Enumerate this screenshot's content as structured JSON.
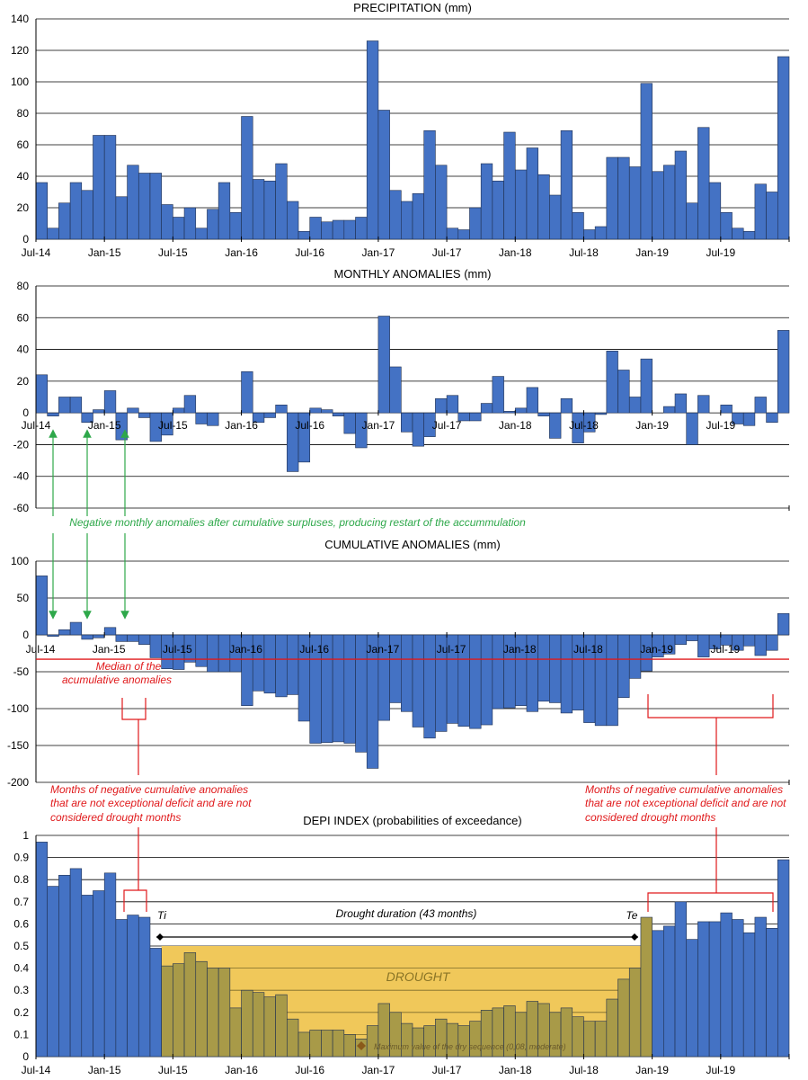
{
  "months": [
    "Jul-14",
    "Aug-14",
    "Sep-14",
    "Oct-14",
    "Nov-14",
    "Dec-14",
    "Jan-15",
    "Feb-15",
    "Mar-15",
    "Apr-15",
    "May-15",
    "Jun-15",
    "Jul-15",
    "Aug-15",
    "Sep-15",
    "Oct-15",
    "Nov-15",
    "Dec-15",
    "Jan-16",
    "Feb-16",
    "Mar-16",
    "Apr-16",
    "May-16",
    "Jun-16",
    "Jul-16",
    "Aug-16",
    "Sep-16",
    "Oct-16",
    "Nov-16",
    "Dec-16",
    "Jan-17",
    "Feb-17",
    "Mar-17",
    "Apr-17",
    "May-17",
    "Jun-17",
    "Jul-17",
    "Aug-17",
    "Sep-17",
    "Oct-17",
    "Nov-17",
    "Dec-17",
    "Jan-18",
    "Feb-18",
    "Mar-18",
    "Apr-18",
    "May-18",
    "Jun-18",
    "Jul-18",
    "Aug-18",
    "Sep-18",
    "Oct-18",
    "Nov-18",
    "Dec-18",
    "Jan-19",
    "Feb-19",
    "Mar-19",
    "Apr-19",
    "May-19",
    "Jun-19",
    "Jul-19",
    "Aug-19",
    "Sep-19",
    "Oct-19",
    "Nov-19",
    "Dec-19"
  ],
  "x_tick_labels": [
    "Jul-14",
    "Jan-15",
    "Jul-15",
    "Jan-16",
    "Jul-16",
    "Jan-17",
    "Jul-17",
    "Jan-18",
    "Jul-18",
    "Jan-19",
    "Jul-19"
  ],
  "colors": {
    "bar": "#4472c4",
    "bar_outline": "#1f2f4f",
    "drought_bar": "#a89a48",
    "drought_band": "#f0c85a",
    "median_line": "#e0191b",
    "green_arrow": "#2ea84a",
    "red_annotation": "#e0191b"
  },
  "chart_data": [
    {
      "type": "bar",
      "title": "PRECIPITATION (mm)",
      "ylim": [
        0,
        140
      ],
      "yticks": [
        0,
        20,
        40,
        60,
        80,
        100,
        120,
        140
      ],
      "values": [
        36,
        7,
        23,
        36,
        31,
        66,
        66,
        27,
        47,
        42,
        42,
        22,
        14,
        20,
        7,
        19,
        36,
        17,
        78,
        38,
        37,
        48,
        24,
        5,
        14,
        11,
        12,
        12,
        14,
        126,
        82,
        31,
        24,
        29,
        69,
        47,
        7,
        6,
        20,
        48,
        37,
        68,
        44,
        58,
        41,
        28,
        69,
        17,
        6,
        8,
        52,
        52,
        46,
        99,
        43,
        47,
        56,
        23,
        71,
        36,
        17,
        7,
        5,
        35,
        30,
        116
      ]
    },
    {
      "type": "bar",
      "title": "MONTHLY ANOMALIES (mm)",
      "ylim": [
        -60,
        80
      ],
      "yticks": [
        -60,
        -40,
        -20,
        0,
        20,
        40,
        60,
        80
      ],
      "values": [
        24,
        -2,
        10,
        10,
        -6,
        2,
        14,
        -17,
        3,
        -3,
        -18,
        -14,
        3,
        11,
        -7,
        -8,
        0,
        0,
        26,
        -6,
        -3,
        5,
        -37,
        -31,
        3,
        2,
        -2,
        -13,
        -22,
        0,
        61,
        29,
        -12,
        -21,
        -15,
        9,
        11,
        -5,
        -5,
        6,
        23,
        1,
        3,
        16,
        -2,
        -16,
        9,
        -19,
        -12,
        -1,
        39,
        27,
        10,
        34,
        0,
        4,
        12,
        -20,
        11,
        0,
        5,
        -7,
        -8,
        10,
        -6,
        52
      ]
    },
    {
      "type": "bar",
      "title": "CUMULATIVE ANOMALIES (mm)",
      "ylim": [
        -200,
        100
      ],
      "yticks": [
        -200,
        -150,
        -100,
        -50,
        0,
        50,
        100
      ],
      "median": -33,
      "values": [
        80,
        -2,
        7,
        17,
        -6,
        -4,
        10,
        -9,
        -9,
        -13,
        -31,
        -46,
        -47,
        -37,
        -43,
        -50,
        -50,
        -50,
        -96,
        -76,
        -79,
        -84,
        -81,
        -117,
        -147,
        -146,
        -145,
        -147,
        -159,
        -181,
        -116,
        -92,
        -104,
        -125,
        -140,
        -131,
        -120,
        -124,
        -127,
        -122,
        -100,
        -99,
        -96,
        -104,
        -90,
        -92,
        -106,
        -102,
        -119,
        -123,
        -123,
        -85,
        -59,
        -49,
        -30,
        -26,
        -13,
        -8,
        -30,
        -19,
        -14,
        -21,
        -15,
        -28,
        -21,
        29
      ]
    },
    {
      "type": "bar",
      "title": "DEPI INDEX (probabilities of exceedance)",
      "ylim": [
        0,
        1
      ],
      "yticks": [
        "0",
        "0.1",
        "0.2",
        "0.3",
        "0.4",
        "0.5",
        "0.6",
        "0.7",
        "0.8",
        "0.9",
        "1"
      ],
      "drought_threshold": 0.5,
      "drought_start_index": 11,
      "drought_end_index": 53,
      "values": [
        0.97,
        0.77,
        0.82,
        0.85,
        0.73,
        0.75,
        0.83,
        0.62,
        0.64,
        0.63,
        0.49,
        0.41,
        0.42,
        0.47,
        0.43,
        0.4,
        0.4,
        0.22,
        0.3,
        0.29,
        0.27,
        0.28,
        0.17,
        0.11,
        0.12,
        0.12,
        0.12,
        0.1,
        0.08,
        0.14,
        0.24,
        0.2,
        0.15,
        0.13,
        0.14,
        0.17,
        0.15,
        0.14,
        0.16,
        0.21,
        0.22,
        0.23,
        0.2,
        0.25,
        0.24,
        0.2,
        0.22,
        0.18,
        0.16,
        0.16,
        0.26,
        0.35,
        0.4,
        0.63,
        0.57,
        0.59,
        0.7,
        0.53,
        0.61,
        0.61,
        0.65,
        0.62,
        0.56,
        0.63,
        0.58,
        0.89
      ]
    }
  ],
  "annotations": {
    "green_note": "Negative monthly anomalies after cumulative surpluses, producing restart of the accummulation",
    "median_label_1": "Median of the",
    "median_label_2": "acumulative anomalies",
    "left_note_1": "Months of negative cumulative anomalies",
    "left_note_2": "that are not exceptional deficit and are not",
    "left_note_3": "considered drought months",
    "right_note_1": "Months of negative cumulative anomalies",
    "right_note_2": "that are not exceptional deficit and are not",
    "right_note_3": "considered drought months",
    "ti": "Ti",
    "te": "Te",
    "drought_duration": "Drought duration (43 months)",
    "drought_label": "DROUGHT",
    "max_value_note": "Maximum  value of the dry sequence (0,08, moderate)"
  }
}
